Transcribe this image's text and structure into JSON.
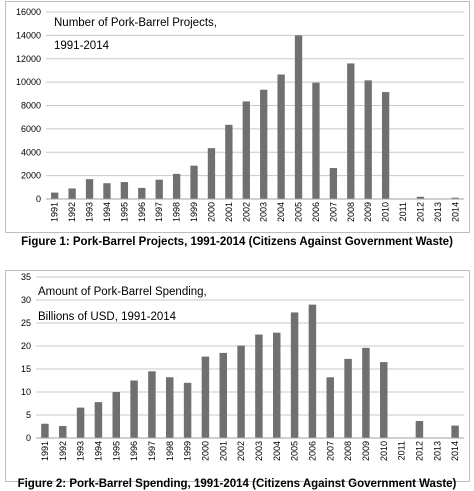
{
  "chart_data": [
    {
      "type": "bar",
      "title_lines": [
        "Number of Pork-Barrel Projects,",
        "1991-2014"
      ],
      "categories": [
        "1991",
        "1992",
        "1993",
        "1994",
        "1995",
        "1996",
        "1997",
        "1998",
        "1999",
        "2000",
        "2001",
        "2002",
        "2003",
        "2004",
        "2005",
        "2006",
        "2007",
        "2008",
        "2009",
        "2010",
        "2011",
        "2012",
        "2013",
        "2014"
      ],
      "values": [
        550,
        900,
        1700,
        1350,
        1450,
        950,
        1650,
        2150,
        2850,
        4350,
        6350,
        8350,
        9350,
        10650,
        14000,
        9950,
        2650,
        11600,
        10150,
        9150,
        0,
        190,
        0,
        110
      ],
      "ylim": [
        0,
        16000
      ],
      "yticks": [
        0,
        2000,
        4000,
        6000,
        8000,
        10000,
        12000,
        14000,
        16000
      ],
      "grid": true,
      "bar_color": "#707070",
      "caption": "Figure 1: Pork-Barrel Projects, 1991-2014 (Citizens Against Government Waste)"
    },
    {
      "type": "bar",
      "title_lines": [
        "Amount of Pork-Barrel Spending,",
        "Billions of USD, 1991-2014"
      ],
      "categories": [
        "1991",
        "1992",
        "1993",
        "1994",
        "1995",
        "1996",
        "1997",
        "1998",
        "1999",
        "2000",
        "2001",
        "2002",
        "2003",
        "2004",
        "2005",
        "2006",
        "2007",
        "2008",
        "2009",
        "2010",
        "2011",
        "2012",
        "2013",
        "2014"
      ],
      "values": [
        3.1,
        2.6,
        6.6,
        7.8,
        10.0,
        12.5,
        14.5,
        13.2,
        12.0,
        17.7,
        18.5,
        20.1,
        22.5,
        22.9,
        27.3,
        29.0,
        13.2,
        17.2,
        19.6,
        16.5,
        0,
        3.7,
        0,
        2.7
      ],
      "ylim": [
        0,
        35
      ],
      "yticks": [
        0,
        5,
        10,
        15,
        20,
        25,
        30,
        35
      ],
      "grid": true,
      "bar_color": "#707070",
      "caption": "Figure 2: Pork-Barrel Spending, 1991-2014 (Citizens Against Government Waste)"
    }
  ]
}
